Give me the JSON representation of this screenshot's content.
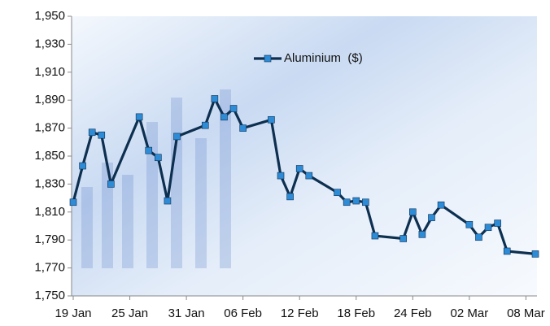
{
  "chart_data": {
    "type": "line",
    "x": [
      "19 Jan",
      "20 Jan",
      "21 Jan",
      "22 Jan",
      "23 Jan",
      "26 Jan",
      "27 Jan",
      "28 Jan",
      "29 Jan",
      "30 Jan",
      "02 Feb",
      "03 Feb",
      "04 Feb",
      "05 Feb",
      "06 Feb",
      "09 Feb",
      "10 Feb",
      "11 Feb",
      "12 Feb",
      "13 Feb",
      "16 Feb",
      "17 Feb",
      "18 Feb",
      "19 Feb",
      "20 Feb",
      "23 Feb",
      "24 Feb",
      "25 Feb",
      "26 Feb",
      "27 Feb",
      "02 Mar",
      "03 Mar",
      "04 Mar",
      "05 Mar",
      "06 Mar",
      "09 Mar"
    ],
    "series": [
      {
        "name": "Aluminium  ($)",
        "color": "#0d2f50",
        "marker_color": "#2e8bd6",
        "values": [
          1817,
          1843,
          1867,
          1865,
          1830,
          1878,
          1854,
          1849,
          1818,
          1864,
          1872,
          1891,
          1878,
          1884,
          1870,
          1876,
          1836,
          1821,
          1841,
          1836,
          1824,
          1817,
          1818,
          1817,
          1793,
          1791,
          1810,
          1794,
          1806,
          1815,
          1801,
          1792,
          1799,
          1802,
          1782,
          1780
        ]
      }
    ],
    "xlim": [
      "19 Jan",
      "09 Mar"
    ],
    "xticks": [
      "19 Jan",
      "25 Jan",
      "31 Jan",
      "06 Feb",
      "12 Feb",
      "18 Feb",
      "24 Feb",
      "02 Mar",
      "08 Mar"
    ],
    "ylim": [
      1750,
      1950
    ],
    "yticks": [
      {
        "value": 1750,
        "label": "1,750"
      },
      {
        "value": 1770,
        "label": "1,770"
      },
      {
        "value": 1790,
        "label": "1,790"
      },
      {
        "value": 1810,
        "label": "1,810"
      },
      {
        "value": 1830,
        "label": "1,830"
      },
      {
        "value": 1850,
        "label": "1,850"
      },
      {
        "value": 1870,
        "label": "1,870"
      },
      {
        "value": 1890,
        "label": "1,890"
      },
      {
        "value": 1910,
        "label": "1,910"
      },
      {
        "value": 1930,
        "label": "1,930"
      },
      {
        "value": 1950,
        "label": "1,950"
      }
    ],
    "grid": false,
    "legend": "top"
  }
}
